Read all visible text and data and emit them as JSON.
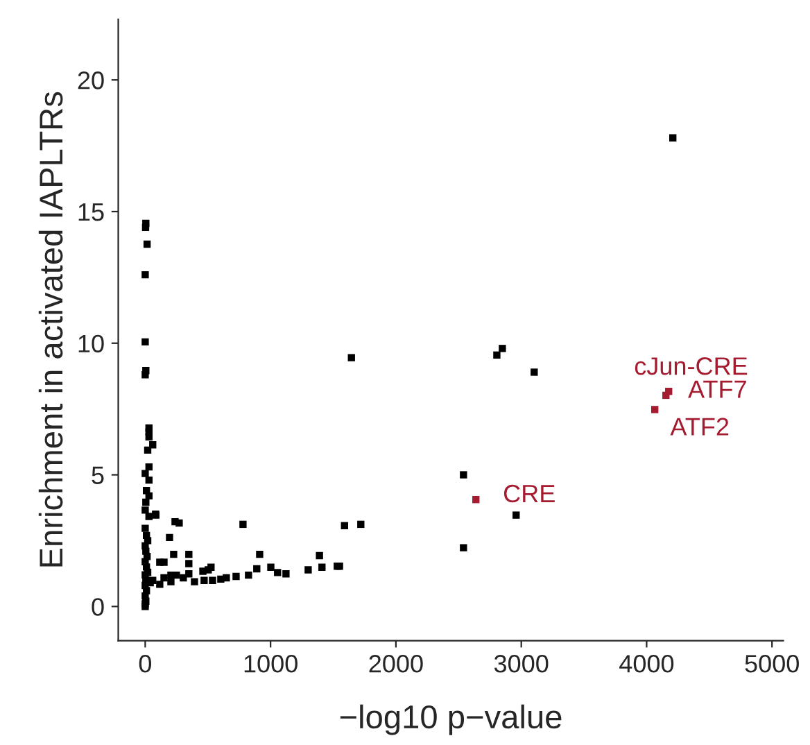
{
  "chart_data": {
    "type": "scatter",
    "xlabel": "−log10 p−value",
    "ylabel": "Enrichment in activated IAPLTRs",
    "xlim": [
      -215,
      5090
    ],
    "ylim": [
      -1.3,
      22.3
    ],
    "xticks": [
      0,
      1000,
      2000,
      3000,
      4000,
      5000
    ],
    "yticks": [
      0,
      5,
      10,
      15,
      20
    ],
    "grid": false,
    "legend": false,
    "marker": "square",
    "series": [
      {
        "color": "#000000",
        "x": [
          4209,
          2805,
          2849,
          3103,
          2539,
          2959,
          2539,
          1645,
          1590,
          1720,
          780,
          913,
          1390,
          1410,
          1532,
          1550,
          1300,
          1123,
          1056,
          1002,
          890,
          824,
          725,
          647,
          603,
          537,
          503,
          525,
          460,
          470,
          393,
          348,
          348,
          348,
          304,
          249,
          205,
          205,
          150,
          116,
          60,
          227,
          194,
          238,
          271,
          83,
          116,
          150,
          5,
          3,
          15,
          0,
          0,
          5,
          0,
          30,
          30,
          30,
          60,
          20,
          30,
          0,
          30,
          10,
          30,
          5,
          0,
          30,
          85,
          0,
          10,
          20,
          0,
          5,
          15,
          0,
          10,
          20,
          0,
          5,
          40,
          0,
          10,
          0,
          5,
          0,
          0
        ],
        "values": [
          17.8,
          9.55,
          9.8,
          8.9,
          5.0,
          3.47,
          2.23,
          9.45,
          3.07,
          3.12,
          3.12,
          1.98,
          1.93,
          1.49,
          1.53,
          1.53,
          1.39,
          1.24,
          1.29,
          1.49,
          1.43,
          1.19,
          1.14,
          1.09,
          1.04,
          0.99,
          1.39,
          1.49,
          1.34,
          0.99,
          0.94,
          1.24,
          1.63,
          1.98,
          1.09,
          1.19,
          0.94,
          1.19,
          1.09,
          0.84,
          0.99,
          1.98,
          2.62,
          3.22,
          3.17,
          3.51,
          1.68,
          1.68,
          14.55,
          14.4,
          13.76,
          12.6,
          10.05,
          8.96,
          8.8,
          6.78,
          6.63,
          6.44,
          6.14,
          5.94,
          5.3,
          5.05,
          4.8,
          4.4,
          4.2,
          3.96,
          3.66,
          3.42,
          3.47,
          2.97,
          2.7,
          2.5,
          2.3,
          2.1,
          1.9,
          1.7,
          1.5,
          1.3,
          1.2,
          1.0,
          0.9,
          0.8,
          0.6,
          0.4,
          0.2,
          0.1,
          0.0
        ]
      },
      {
        "color": "#a51c30",
        "x": [
          2638,
          4176,
          4154,
          4065
        ],
        "values": [
          4.06,
          8.17,
          8.02,
          7.48
        ]
      }
    ],
    "annotations": [
      {
        "text": "CRE",
        "x": 2638,
        "y": 4.06
      },
      {
        "text": "cJun-CRE",
        "x": 4176,
        "y": 8.17
      },
      {
        "text": "ATF7",
        "x": 4176,
        "y": 8.17
      },
      {
        "text": "ATF2",
        "x": 4065,
        "y": 7.48
      }
    ]
  }
}
